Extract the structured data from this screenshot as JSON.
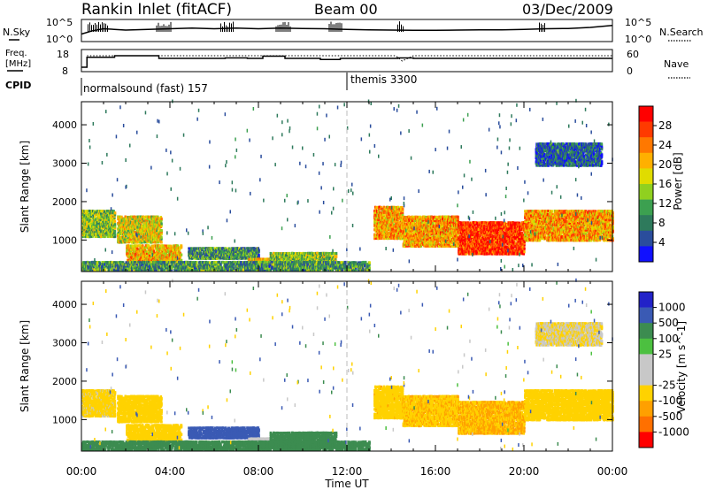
{
  "header": {
    "station": "Rankin Inlet (fitACF)",
    "beam": "Beam 00",
    "date": "03/Dec/2009"
  },
  "top_panels": {
    "nsky_label": "N.Sky",
    "nsky_ticks": [
      "10^5",
      "10^0"
    ],
    "nsearch_label": "N.Search",
    "nsearch_ticks": [
      "10^5",
      "10^0"
    ],
    "freq_label_1": "Freq.",
    "freq_label_2": "[MHz]",
    "freq_ticks": [
      "18",
      "8"
    ],
    "nave_label": "Nave",
    "nave_ticks": [
      "60",
      "0"
    ],
    "cpid_label": "CPID",
    "cpid_entries": [
      "normalsound (fast) 157",
      "themis 3300"
    ]
  },
  "axes": {
    "xlabel": "Time UT",
    "x_ticks": [
      "00:00",
      "04:00",
      "08:00",
      "12:00",
      "16:00",
      "20:00",
      "00:00"
    ],
    "ylabel": "Slant Range [km]",
    "y_ticks": [
      "4000",
      "3000",
      "2000",
      "1000"
    ]
  },
  "colorbars": {
    "power_label": "Power [dB]",
    "power_ticks": [
      "28",
      "24",
      "20",
      "16",
      "12",
      "8",
      "4"
    ],
    "power_colors": [
      "#ff0000",
      "#ff3a00",
      "#ff7800",
      "#ffb000",
      "#e0dc00",
      "#90d020",
      "#3ca050",
      "#2e7a5c",
      "#2a4d9c",
      "#1010ff"
    ],
    "velocity_label": "Velocity [m s^-1]",
    "velocity_ticks": [
      "1000",
      "500",
      "100",
      "25",
      "-25",
      "-100",
      "-500",
      "-1000"
    ],
    "velocity_colors": [
      "#2222c8",
      "#3a5ab4",
      "#3c8c50",
      "#4cc040",
      "#c8c8c8",
      "#c8c8c8",
      "#ffd200",
      "#ffa000",
      "#ff7000",
      "#ff0000"
    ]
  },
  "chart_data": {
    "type": "heatmap",
    "x_range_hours": [
      0,
      24
    ],
    "y_range_km": [
      180,
      4600
    ],
    "power_range_db": [
      0,
      32
    ],
    "velocity_range_ms": [
      -1000,
      1000
    ],
    "mode_change_hour": 12,
    "nsky_series_log": [
      [
        0,
        0.3
      ],
      [
        0.5,
        0.55
      ],
      [
        1,
        0.7
      ],
      [
        2,
        0.6
      ],
      [
        3,
        0.65
      ],
      [
        4,
        0.7
      ],
      [
        5,
        0.75
      ],
      [
        6,
        0.7
      ],
      [
        7,
        0.75
      ],
      [
        8,
        0.7
      ],
      [
        9,
        0.75
      ],
      [
        10,
        0.72
      ],
      [
        11,
        0.7
      ],
      [
        12,
        0.65
      ],
      [
        13,
        0.62
      ],
      [
        14,
        0.6
      ],
      [
        15,
        0.58
      ],
      [
        16,
        0.58
      ],
      [
        17,
        0.6
      ],
      [
        18,
        0.62
      ],
      [
        19,
        0.62
      ],
      [
        20,
        0.65
      ],
      [
        21,
        0.7
      ],
      [
        22,
        0.72
      ],
      [
        23,
        0.8
      ],
      [
        24,
        0.95
      ]
    ],
    "freq_steps_mhz": [
      [
        0,
        10
      ],
      [
        0.25,
        14.5
      ],
      [
        1.5,
        15.2
      ],
      [
        3.5,
        14.0
      ],
      [
        6.5,
        14.2
      ],
      [
        7.5,
        14.0
      ],
      [
        8.2,
        15.0
      ],
      [
        9.2,
        14.0
      ],
      [
        10.8,
        13.5
      ],
      [
        11.7,
        14.0
      ],
      [
        14.3,
        14.2
      ],
      [
        15,
        14.0
      ],
      [
        24,
        14.0
      ]
    ],
    "echo_regions": [
      {
        "t0": 0.0,
        "t1": 1.5,
        "r0": 1050,
        "r1": 1750,
        "power": 14,
        "vel": -150
      },
      {
        "t0": 1.6,
        "t1": 3.6,
        "r0": 900,
        "r1": 1600,
        "power": 18,
        "vel": -250
      },
      {
        "t0": 2.0,
        "t1": 4.5,
        "r0": 380,
        "r1": 850,
        "power": 20,
        "vel": -200
      },
      {
        "t0": 4.8,
        "t1": 8.0,
        "r0": 480,
        "r1": 780,
        "power": 10,
        "vel": 250
      },
      {
        "t0": 7.5,
        "t1": 8.5,
        "r0": 280,
        "r1": 500,
        "power": 20,
        "vel": -50
      },
      {
        "t0": 8.5,
        "t1": 11.5,
        "r0": 250,
        "r1": 650,
        "power": 14,
        "vel": 60
      },
      {
        "t0": 13.2,
        "t1": 14.5,
        "r0": 1000,
        "r1": 1850,
        "power": 22,
        "vel": -350
      },
      {
        "t0": 14.5,
        "t1": 17.0,
        "r0": 800,
        "r1": 1600,
        "power": 22,
        "vel": -420
      },
      {
        "t0": 17.0,
        "t1": 20.0,
        "r0": 600,
        "r1": 1450,
        "power": 28,
        "vel": -520
      },
      {
        "t0": 20.0,
        "t1": 24.0,
        "r0": 950,
        "r1": 1750,
        "power": 22,
        "vel": -320
      },
      {
        "t0": 0.0,
        "t1": 13.0,
        "r0": 180,
        "r1": 420,
        "power": 10,
        "vel": 50
      },
      {
        "t0": 20.5,
        "t1": 23.5,
        "r0": 2900,
        "r1": 3500,
        "power": 6,
        "vel": -100
      }
    ]
  }
}
